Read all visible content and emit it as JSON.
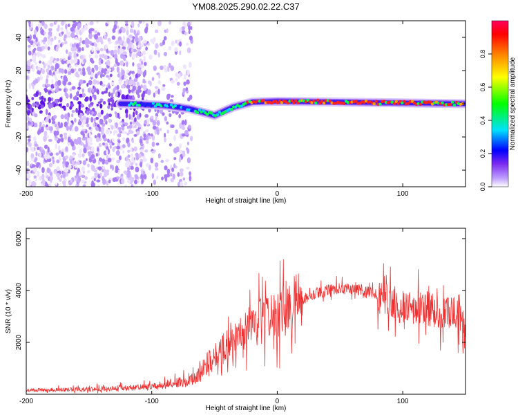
{
  "title": "YM08.2025.290.02.22.C37",
  "chart_data": [
    {
      "type": "heatmap",
      "xlabel": "Height of straight line (km)",
      "ylabel": "Frequency (Hz)",
      "xlim": [
        -200,
        150
      ],
      "ylim": [
        -50,
        50
      ],
      "xticks": [
        -200,
        -100,
        0,
        100
      ],
      "yticks": [
        -40,
        -20,
        0,
        20,
        40
      ],
      "ridge": {
        "description_points": [
          {
            "x": -120,
            "freq": 0
          },
          {
            "x": -90,
            "freq": -1
          },
          {
            "x": -70,
            "freq": -3
          },
          {
            "x": -50,
            "freq": -7
          },
          {
            "x": -35,
            "freq": -2
          },
          {
            "x": -20,
            "freq": 1
          },
          {
            "x": 0,
            "freq": 1.5
          },
          {
            "x": 50,
            "freq": 1
          },
          {
            "x": 100,
            "freq": 0.5
          },
          {
            "x": 150,
            "freq": 0
          }
        ]
      },
      "colorbar": {
        "label": "Normalized spectral amplitude",
        "range": [
          0,
          1
        ],
        "ticks": [
          0.0,
          0.2,
          0.4,
          0.6,
          0.8
        ]
      }
    },
    {
      "type": "line",
      "xlabel": "Height of straight line (km)",
      "ylabel": "SNR (10 * v/v)",
      "xlim": [
        -200,
        150
      ],
      "ylim": [
        0,
        6400
      ],
      "xticks": [
        -200,
        -100,
        0,
        100
      ],
      "yticks": [
        2000,
        4000,
        6000
      ],
      "series": [
        {
          "name": "SNR",
          "color": "#f03030",
          "envelope": [
            {
              "x": -200,
              "y": 150
            },
            {
              "x": -150,
              "y": 200
            },
            {
              "x": -100,
              "y": 280
            },
            {
              "x": -75,
              "y": 500
            },
            {
              "x": -65,
              "y": 600
            },
            {
              "x": -50,
              "y": 1500
            },
            {
              "x": -30,
              "y": 2300
            },
            {
              "x": -10,
              "y": 2900
            },
            {
              "x": 10,
              "y": 3400
            },
            {
              "x": 30,
              "y": 3900
            },
            {
              "x": 50,
              "y": 4100
            },
            {
              "x": 70,
              "y": 4000
            },
            {
              "x": 85,
              "y": 3700
            },
            {
              "x": 100,
              "y": 3400
            },
            {
              "x": 120,
              "y": 3300
            },
            {
              "x": 140,
              "y": 3100
            },
            {
              "x": 150,
              "y": 2800
            }
          ]
        }
      ]
    }
  ]
}
